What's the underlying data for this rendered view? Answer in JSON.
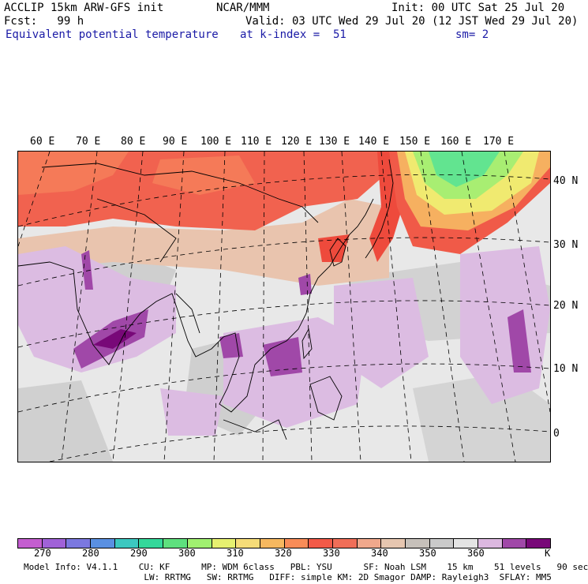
{
  "header": {
    "line1_left": "ACCLIP 15km ARW-GFS init",
    "line1_center": "NCAR/MMM",
    "line1_right": "Init: 00 UTC Sat 25 Jul 20",
    "line2_left": "Fcst:   99 h",
    "line2_right": "Valid: 03 UTC Wed 29 Jul 20 (12 JST Wed 29 Jul 20)",
    "line3_left": "Equivalent potential temperature",
    "line3_center": "at k-index =  51",
    "line3_right": "sm= 2"
  },
  "map": {
    "lon_labels": [
      "60 E",
      "70 E",
      "80 E",
      "90 E",
      "100 E",
      "110 E",
      "120 E",
      "130 E",
      "140 E",
      "150 E",
      "160 E",
      "170 E"
    ],
    "lat_labels": [
      "40 N",
      "30 N",
      "20 N",
      "10 N",
      "0"
    ]
  },
  "colorbar": {
    "colors": [
      "#c45ed0",
      "#a062d8",
      "#7b78e0",
      "#5a90e2",
      "#3cc8c0",
      "#34d89a",
      "#5ee07e",
      "#a0f070",
      "#e6f070",
      "#f6dc78",
      "#f6b860",
      "#f88c58",
      "#f25a48",
      "#f06e58",
      "#f0a88c",
      "#e6c6b0",
      "#c6c0ba",
      "#cacaca",
      "#e4e4e4",
      "#dcb8e0",
      "#a048a8",
      "#780878"
    ],
    "tick_labels": [
      "270",
      "280",
      "290",
      "300",
      "310",
      "320",
      "330",
      "340",
      "350",
      "360"
    ],
    "unit": "K"
  },
  "footer": {
    "line1": "Model Info: V4.1.1    CU: KF      MP: WDM 6class   PBL: YSU      SF: Noah LSM    15 km    51 levels   90 sec",
    "line2": "                       LW: RRTMG   SW: RRTMG   DIFF: simple KM: 2D Smagor DAMP: Rayleigh3  SFLAY: MM5"
  }
}
